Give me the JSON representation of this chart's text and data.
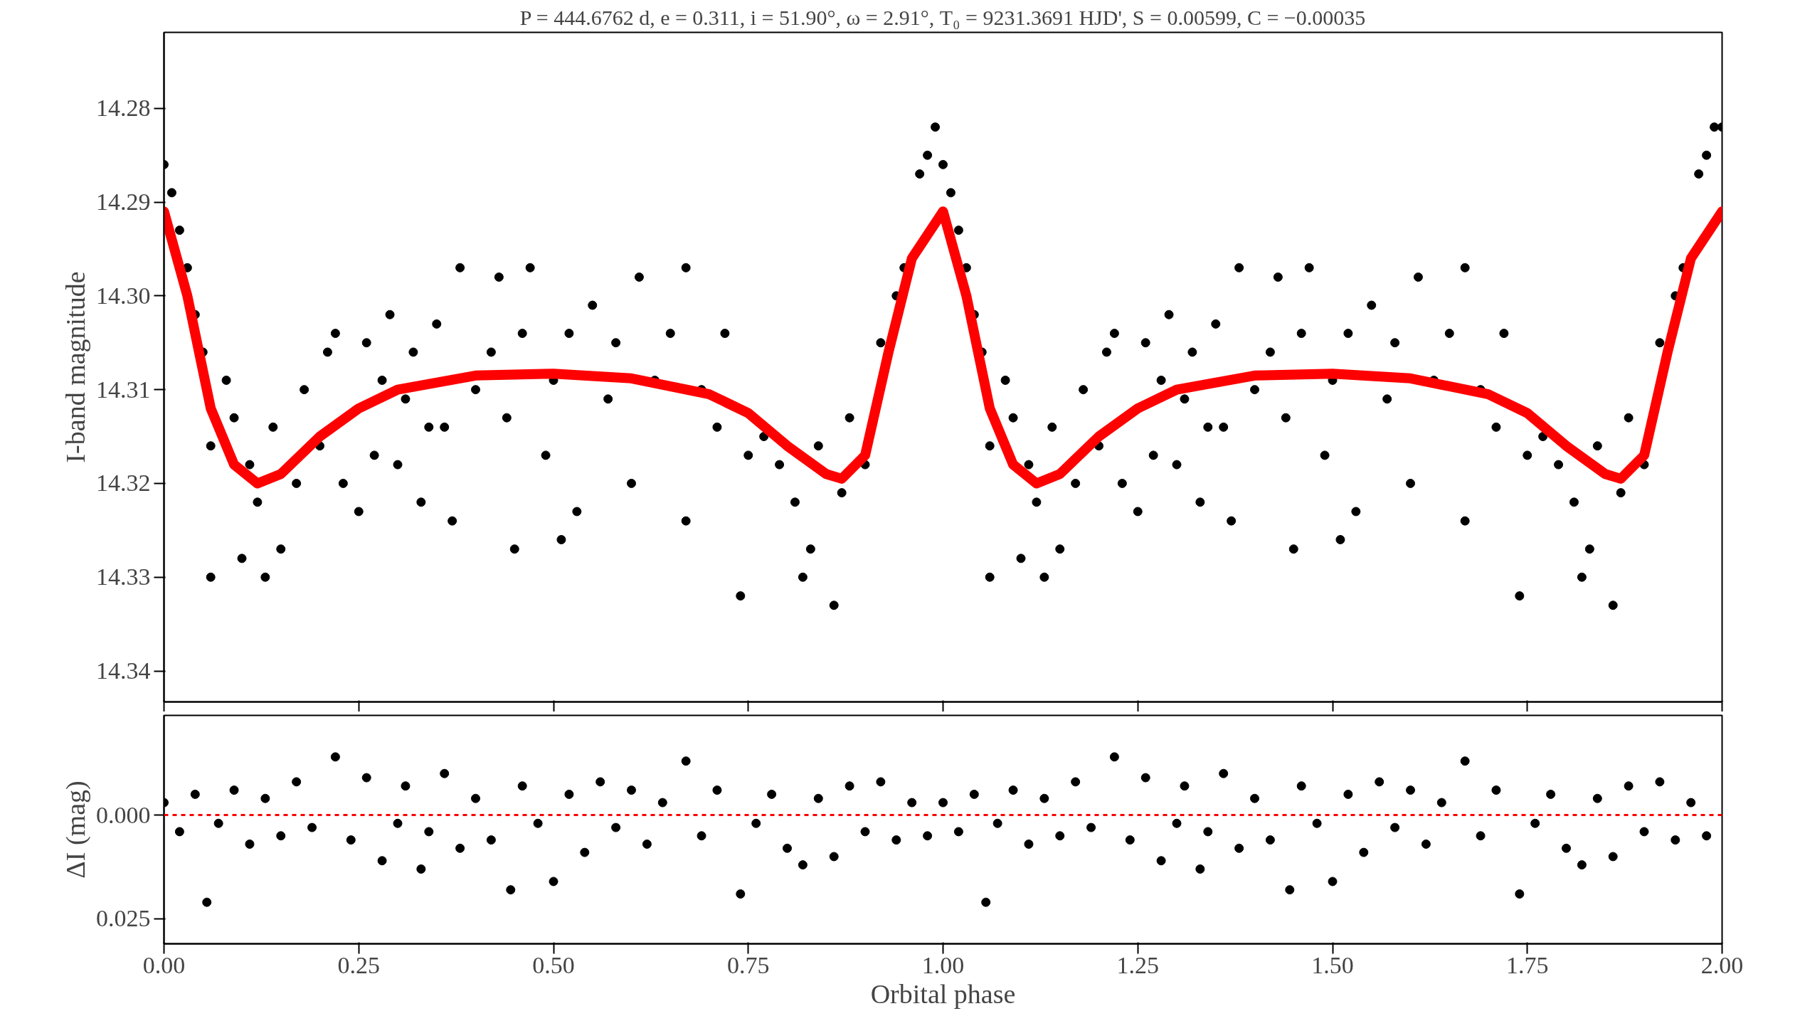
{
  "chart_data": [
    {
      "type": "scatter",
      "title": "P = 444.6762 d, e = 0.311, i = 51.90°, ω = 2.91°, T₀ = 9231.3691 HJD', S = 0.00599, C = −0.00035",
      "ylabel": "I-band magnitude",
      "xlim": [
        0,
        2
      ],
      "xticks": [
        0,
        0.25,
        0.5,
        0.75,
        1,
        1.25,
        1.5,
        1.75,
        2
      ],
      "ylim": [
        14.3433,
        14.2719
      ],
      "yticks": [
        {
          "value": 14.28,
          "label": "14.28"
        },
        {
          "value": 14.29,
          "label": "14.29"
        },
        {
          "value": 14.3,
          "label": "14.30"
        },
        {
          "value": 14.31,
          "label": "14.31"
        },
        {
          "value": 14.32,
          "label": "14.32"
        },
        {
          "value": 14.33,
          "label": "14.33"
        },
        {
          "value": 14.34,
          "label": "14.34"
        }
      ],
      "tick_labels": "y",
      "series": [
        {
          "marker": "circle",
          "color": "#000000",
          "x": [
            0.0,
            0.01,
            0.02,
            0.03,
            0.04,
            0.05,
            0.06,
            0.06,
            0.08,
            0.09,
            0.1,
            0.11,
            0.12,
            0.13,
            0.14,
            0.15,
            0.17,
            0.18,
            0.2,
            0.21,
            0.22,
            0.23,
            0.25,
            0.26,
            0.27,
            0.28,
            0.29,
            0.3,
            0.31,
            0.32,
            0.33,
            0.34,
            0.35,
            0.36,
            0.37,
            0.38,
            0.4,
            0.42,
            0.43,
            0.44,
            0.45,
            0.46,
            0.47,
            0.49,
            0.5,
            0.51,
            0.52,
            0.53,
            0.55,
            0.57,
            0.58,
            0.6,
            0.61,
            0.63,
            0.65,
            0.67,
            0.67,
            0.69,
            0.71,
            0.72,
            0.74,
            0.75,
            0.77,
            0.79,
            0.81,
            0.82,
            0.83,
            0.84,
            0.86,
            0.87,
            0.88,
            0.9,
            0.92,
            0.94,
            0.95,
            0.97,
            0.98,
            0.99,
            1.0,
            1.01,
            1.02,
            1.03,
            1.04,
            1.05,
            1.06,
            1.06,
            1.08,
            1.09,
            1.1,
            1.11,
            1.12,
            1.13,
            1.14,
            1.15,
            1.17,
            1.18,
            1.2,
            1.21,
            1.22,
            1.23,
            1.25,
            1.26,
            1.27,
            1.28,
            1.29,
            1.3,
            1.31,
            1.32,
            1.33,
            1.34,
            1.35,
            1.36,
            1.37,
            1.38,
            1.4,
            1.42,
            1.43,
            1.44,
            1.45,
            1.46,
            1.47,
            1.49,
            1.5,
            1.51,
            1.52,
            1.53,
            1.55,
            1.57,
            1.58,
            1.6,
            1.61,
            1.63,
            1.65,
            1.67,
            1.67,
            1.69,
            1.71,
            1.72,
            1.74,
            1.75,
            1.77,
            1.79,
            1.81,
            1.82,
            1.83,
            1.84,
            1.86,
            1.87,
            1.88,
            1.9,
            1.92,
            1.94,
            1.95,
            1.97,
            1.98,
            1.99,
            2.0
          ],
          "values": [
            14.286,
            14.289,
            14.293,
            14.297,
            14.302,
            14.306,
            14.316,
            14.33,
            14.309,
            14.313,
            14.328,
            14.318,
            14.322,
            14.33,
            14.314,
            14.327,
            14.32,
            14.31,
            14.316,
            14.306,
            14.304,
            14.32,
            14.323,
            14.305,
            14.317,
            14.309,
            14.302,
            14.318,
            14.311,
            14.306,
            14.322,
            14.314,
            14.303,
            14.314,
            14.324,
            14.297,
            14.31,
            14.306,
            14.298,
            14.313,
            14.327,
            14.304,
            14.297,
            14.317,
            14.309,
            14.326,
            14.304,
            14.323,
            14.301,
            14.311,
            14.305,
            14.32,
            14.298,
            14.309,
            14.304,
            14.297,
            14.324,
            14.31,
            14.314,
            14.304,
            14.332,
            14.317,
            14.315,
            14.318,
            14.322,
            14.33,
            14.327,
            14.316,
            14.333,
            14.321,
            14.313,
            14.318,
            14.305,
            14.3,
            14.297,
            14.287,
            14.285,
            14.282,
            14.286,
            14.289,
            14.293,
            14.297,
            14.302,
            14.306,
            14.316,
            14.33,
            14.309,
            14.313,
            14.328,
            14.318,
            14.322,
            14.33,
            14.314,
            14.327,
            14.32,
            14.31,
            14.316,
            14.306,
            14.304,
            14.32,
            14.323,
            14.305,
            14.317,
            14.309,
            14.302,
            14.318,
            14.311,
            14.306,
            14.322,
            14.314,
            14.303,
            14.314,
            14.324,
            14.297,
            14.31,
            14.306,
            14.298,
            14.313,
            14.327,
            14.304,
            14.297,
            14.317,
            14.309,
            14.326,
            14.304,
            14.323,
            14.301,
            14.311,
            14.305,
            14.32,
            14.298,
            14.309,
            14.304,
            14.297,
            14.324,
            14.31,
            14.314,
            14.304,
            14.332,
            14.317,
            14.315,
            14.318,
            14.322,
            14.33,
            14.327,
            14.316,
            14.333,
            14.321,
            14.313,
            14.318,
            14.305,
            14.3,
            14.297,
            14.287,
            14.285,
            14.282,
            14.282
          ]
        },
        {
          "type": "line",
          "color": "#ff0000",
          "line_style": "solid",
          "x": [
            0,
            0.03,
            0.06,
            0.09,
            0.12,
            0.15,
            0.2,
            0.25,
            0.3,
            0.4,
            0.5,
            0.6,
            0.7,
            0.75,
            0.8,
            0.85,
            0.87,
            0.9,
            0.93,
            0.96,
            1.0,
            1.03,
            1.06,
            1.09,
            1.12,
            1.15,
            1.2,
            1.25,
            1.3,
            1.4,
            1.5,
            1.6,
            1.7,
            1.75,
            1.8,
            1.85,
            1.87,
            1.9,
            1.93,
            1.96,
            2.0
          ],
          "values": [
            14.291,
            14.3,
            14.312,
            14.318,
            14.32,
            14.319,
            14.315,
            14.312,
            14.31,
            14.3085,
            14.3083,
            14.3088,
            14.3105,
            14.3125,
            14.316,
            14.319,
            14.3195,
            14.317,
            14.306,
            14.296,
            14.291,
            14.3,
            14.312,
            14.318,
            14.32,
            14.319,
            14.315,
            14.312,
            14.31,
            14.3085,
            14.3083,
            14.3088,
            14.3105,
            14.3125,
            14.316,
            14.319,
            14.3195,
            14.317,
            14.306,
            14.296,
            14.291
          ]
        }
      ]
    },
    {
      "type": "scatter",
      "xlabel": "Orbital phase",
      "ylabel": "ΔI (mag)",
      "xlim": [
        0,
        2
      ],
      "xticks": [
        {
          "value": 0,
          "label": "0.00"
        },
        {
          "value": 0.25,
          "label": "0.25"
        },
        {
          "value": 0.5,
          "label": "0.50"
        },
        {
          "value": 0.75,
          "label": "0.75"
        },
        {
          "value": 1,
          "label": "1.00"
        },
        {
          "value": 1.25,
          "label": "1.25"
        },
        {
          "value": 1.5,
          "label": "1.50"
        },
        {
          "value": 1.75,
          "label": "1.75"
        },
        {
          "value": 2,
          "label": "2.00"
        }
      ],
      "ylim": [
        0.031,
        -0.024
      ],
      "yticks": [
        {
          "value": 0,
          "label": "0.000"
        },
        {
          "value": 0.025,
          "label": "0.025"
        }
      ],
      "marker": "circle",
      "ref_lines": [
        {
          "axis": "y",
          "value": 0,
          "color": "#ff0000",
          "line_style": "dashed"
        }
      ],
      "series": [
        {
          "color": "#000000",
          "x": [
            0.0,
            0.02,
            0.04,
            0.055,
            0.07,
            0.09,
            0.11,
            0.13,
            0.15,
            0.17,
            0.19,
            0.22,
            0.24,
            0.26,
            0.28,
            0.3,
            0.31,
            0.33,
            0.34,
            0.36,
            0.38,
            0.4,
            0.42,
            0.445,
            0.46,
            0.48,
            0.5,
            0.52,
            0.54,
            0.56,
            0.58,
            0.6,
            0.62,
            0.64,
            0.67,
            0.69,
            0.71,
            0.74,
            0.76,
            0.78,
            0.8,
            0.82,
            0.84,
            0.86,
            0.88,
            0.9,
            0.92,
            0.94,
            0.96,
            0.98,
            1.0,
            1.02,
            1.04,
            1.055,
            1.07,
            1.09,
            1.11,
            1.13,
            1.15,
            1.17,
            1.19,
            1.22,
            1.24,
            1.26,
            1.28,
            1.3,
            1.31,
            1.33,
            1.34,
            1.36,
            1.38,
            1.4,
            1.42,
            1.445,
            1.46,
            1.48,
            1.5,
            1.52,
            1.54,
            1.56,
            1.58,
            1.6,
            1.62,
            1.64,
            1.67,
            1.69,
            1.71,
            1.74,
            1.76,
            1.78,
            1.8,
            1.82,
            1.84,
            1.86,
            1.88,
            1.9,
            1.92,
            1.94,
            1.96,
            1.98
          ],
          "values": [
            -0.003,
            0.004,
            -0.005,
            0.021,
            0.002,
            -0.006,
            0.007,
            -0.004,
            0.005,
            -0.008,
            0.003,
            -0.014,
            0.006,
            -0.009,
            0.011,
            0.002,
            -0.007,
            0.013,
            0.004,
            -0.01,
            0.008,
            -0.004,
            0.006,
            0.018,
            -0.007,
            0.002,
            0.016,
            -0.005,
            0.009,
            -0.008,
            0.003,
            -0.006,
            0.007,
            -0.003,
            -0.013,
            0.005,
            -0.006,
            0.019,
            0.002,
            -0.005,
            0.008,
            0.012,
            -0.004,
            0.01,
            -0.007,
            0.004,
            -0.008,
            0.006,
            -0.003,
            0.005,
            -0.003,
            0.004,
            -0.005,
            0.021,
            0.002,
            -0.006,
            0.007,
            -0.004,
            0.005,
            -0.008,
            0.003,
            -0.014,
            0.006,
            -0.009,
            0.011,
            0.002,
            -0.007,
            0.013,
            0.004,
            -0.01,
            0.008,
            -0.004,
            0.006,
            0.018,
            -0.007,
            0.002,
            0.016,
            -0.005,
            0.009,
            -0.008,
            0.003,
            -0.006,
            0.007,
            -0.003,
            -0.013,
            0.005,
            -0.006,
            0.019,
            0.002,
            -0.005,
            0.008,
            0.012,
            -0.004,
            0.01,
            -0.007,
            0.004,
            -0.008,
            0.006,
            -0.003,
            0.005
          ]
        }
      ]
    }
  ]
}
